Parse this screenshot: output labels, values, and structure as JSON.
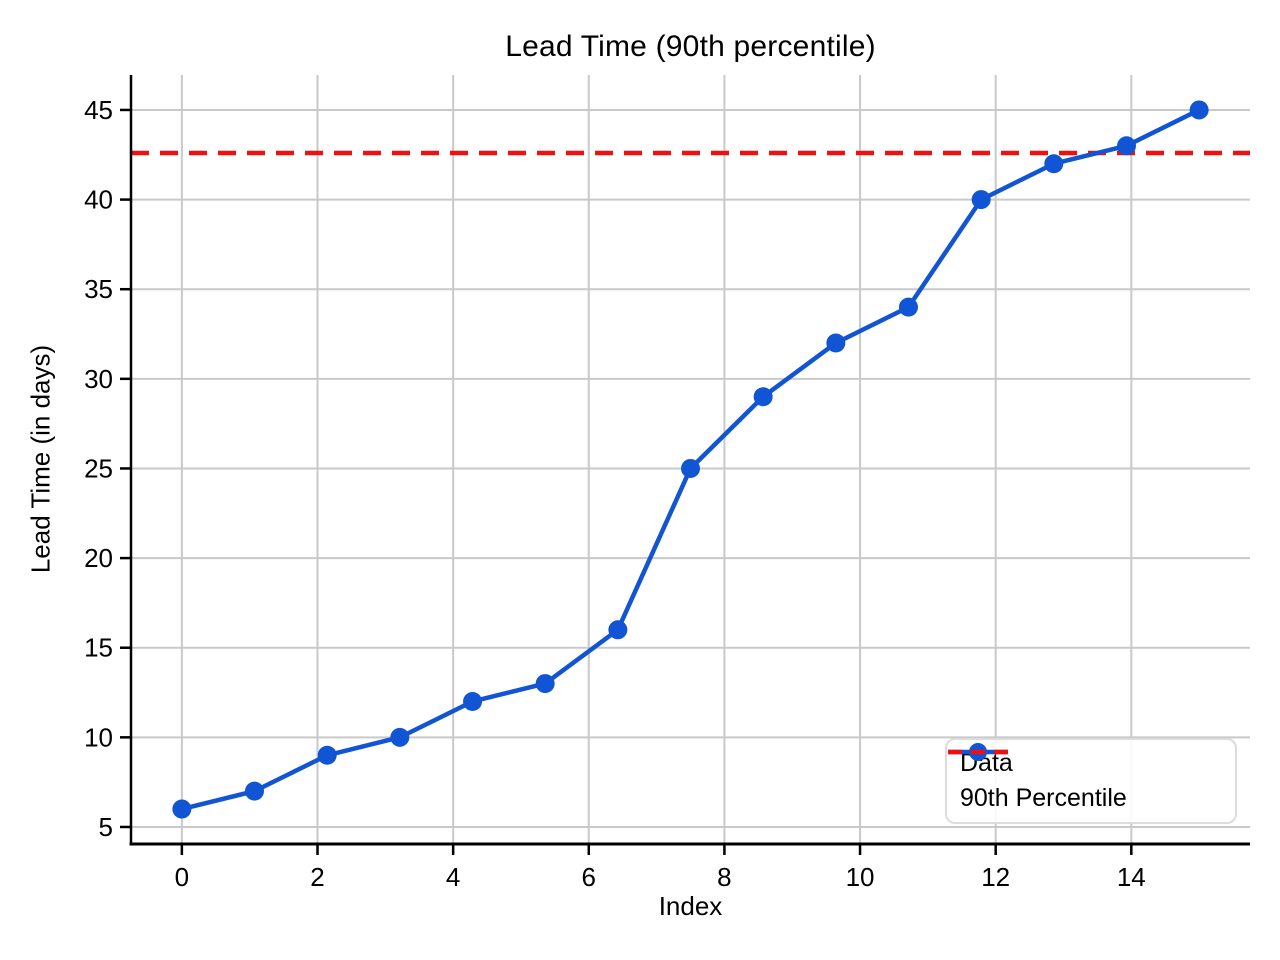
{
  "chart_data": {
    "type": "line",
    "title": "Lead Time (90th percentile)",
    "xlabel": "Index",
    "ylabel": "Lead Time (in days)",
    "x": [
      0,
      1.071,
      2.143,
      3.214,
      4.286,
      5.357,
      6.429,
      7.5,
      8.571,
      9.643,
      10.714,
      11.786,
      12.857,
      13.929,
      15
    ],
    "y": [
      6,
      7,
      9,
      10,
      12,
      13,
      16,
      25,
      29,
      32,
      34,
      40,
      42,
      43,
      45
    ],
    "series_label": "Data",
    "percentile_line": {
      "value": 42.6,
      "label": "90th Percentile"
    },
    "xlim": [
      -0.75,
      15.75
    ],
    "ylim": [
      4.05,
      46.95
    ],
    "xticks": [
      0,
      2,
      4,
      6,
      8,
      10,
      12,
      14
    ],
    "yticks": [
      5,
      10,
      15,
      20,
      25,
      30,
      35,
      40,
      45
    ],
    "grid": true,
    "legend_position": "lower right",
    "colors": {
      "series": "#1155d4",
      "percentile": "#ee1111",
      "grid": "#c9c9c9",
      "spine": "#000000"
    }
  }
}
